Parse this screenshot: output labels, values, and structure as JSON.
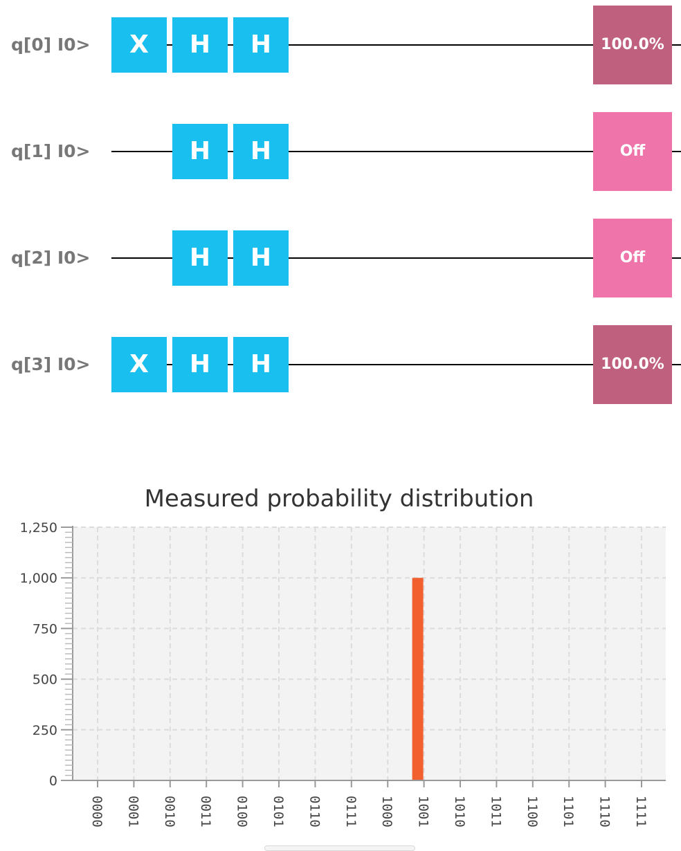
{
  "circuit": {
    "qubits": [
      {
        "label": "q[0] I0>",
        "gates": [
          "X",
          "H",
          "H"
        ],
        "measurement": {
          "text": "100.0%",
          "state": "on"
        }
      },
      {
        "label": "q[1] I0>",
        "gates": [
          "",
          "H",
          "H"
        ],
        "measurement": {
          "text": "Off",
          "state": "off"
        }
      },
      {
        "label": "q[2] I0>",
        "gates": [
          "",
          "H",
          "H"
        ],
        "measurement": {
          "text": "Off",
          "state": "off"
        }
      },
      {
        "label": "q[3] I0>",
        "gates": [
          "X",
          "H",
          "H"
        ],
        "measurement": {
          "text": "100.0%",
          "state": "on"
        }
      }
    ]
  },
  "colors": {
    "gate": "#19c0ef",
    "measure_on": "#bf607f",
    "measure_off": "#ee74a9",
    "bar": "#f26030",
    "plot_background": "#f3f3f3"
  },
  "chart_data": {
    "type": "bar",
    "title": "Measured probability distribution",
    "categories": [
      "0000",
      "0001",
      "0010",
      "0011",
      "0100",
      "0101",
      "0110",
      "0111",
      "1000",
      "1001",
      "1010",
      "1011",
      "1100",
      "1101",
      "1110",
      "1111"
    ],
    "values": [
      0,
      0,
      0,
      0,
      0,
      0,
      0,
      0,
      0,
      1000,
      0,
      0,
      0,
      0,
      0,
      0
    ],
    "ylim": [
      0,
      1250
    ],
    "yticks": [
      0,
      250,
      500,
      750,
      1000,
      1250
    ],
    "ytick_labels": [
      "0",
      "250",
      "500",
      "750",
      "1,000",
      "1,250"
    ],
    "grid": true,
    "xlabel": "",
    "ylabel": ""
  }
}
